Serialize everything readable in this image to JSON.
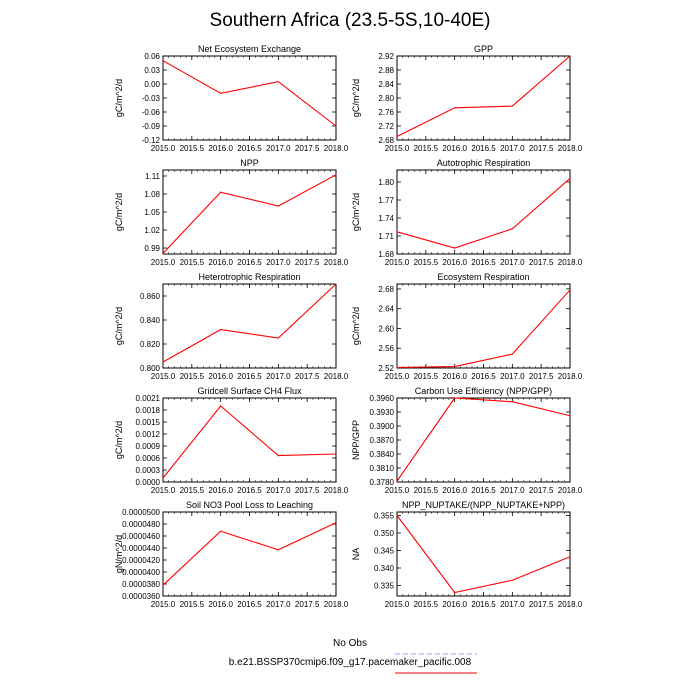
{
  "title": "Southern Africa (23.5-5S,10-40E)",
  "legend": {
    "entries": [
      {
        "label": "No Obs",
        "color": "#9999ff",
        "dash": true
      },
      {
        "label": "b.e21.BSSP370cmip6.f09_g17.pacemaker_pacific.008",
        "color": "#ff0000",
        "dash": false
      }
    ]
  },
  "chart_data": [
    {
      "type": "line",
      "title": "Net Ecosystem Exchange",
      "ylabel": "gC/m^2/d",
      "x": [
        2015.0,
        2016.0,
        2017.0,
        2018.0
      ],
      "xlim": [
        2015.0,
        2018.0
      ],
      "xticks": [
        "2015.0",
        "2015.5",
        "2016.0",
        "2016.5",
        "2017.0",
        "2017.5",
        "2018.0"
      ],
      "ylim": [
        -0.12,
        0.06
      ],
      "yticks": [
        "-0.12",
        "-0.09",
        "-0.06",
        "-0.03",
        "0.00",
        "0.03",
        "0.06"
      ],
      "series": [
        {
          "values": [
            0.05,
            -0.02,
            0.005,
            -0.09
          ],
          "color": "#ff0000"
        }
      ]
    },
    {
      "type": "line",
      "title": "GPP",
      "ylabel": "gC/m^2/d",
      "x": [
        2015.0,
        2016.0,
        2017.0,
        2018.0
      ],
      "xlim": [
        2015.0,
        2018.0
      ],
      "xticks": [
        "2015.0",
        "2015.5",
        "2016.0",
        "2016.5",
        "2017.0",
        "2017.5",
        "2018.0"
      ],
      "ylim": [
        2.68,
        2.92
      ],
      "yticks": [
        "2.68",
        "2.72",
        "2.76",
        "2.80",
        "2.84",
        "2.88",
        "2.92"
      ],
      "series": [
        {
          "values": [
            2.69,
            2.772,
            2.777,
            2.92
          ],
          "color": "#ff0000"
        }
      ]
    },
    {
      "type": "line",
      "title": "NPP",
      "ylabel": "gC/m^2/d",
      "x": [
        2015.0,
        2016.0,
        2017.0,
        2018.0
      ],
      "xlim": [
        2015.0,
        2018.0
      ],
      "xticks": [
        "2015.0",
        "2015.5",
        "2016.0",
        "2016.5",
        "2017.0",
        "2017.5",
        "2018.0"
      ],
      "ylim": [
        0.98,
        1.12
      ],
      "yticks": [
        "0.99",
        "1.02",
        "1.05",
        "1.08",
        "1.11"
      ],
      "series": [
        {
          "values": [
            0.981,
            1.083,
            1.06,
            1.112
          ],
          "color": "#ff0000"
        }
      ]
    },
    {
      "type": "line",
      "title": "Autotrophic Respiration",
      "ylabel": "gC/m^2/d",
      "x": [
        2015.0,
        2016.0,
        2017.0,
        2018.0
      ],
      "xlim": [
        2015.0,
        2018.0
      ],
      "xticks": [
        "2015.0",
        "2015.5",
        "2016.0",
        "2016.5",
        "2017.0",
        "2017.5",
        "2018.0"
      ],
      "ylim": [
        1.68,
        1.82
      ],
      "yticks": [
        "1.68",
        "1.71",
        "1.74",
        "1.77",
        "1.80"
      ],
      "series": [
        {
          "values": [
            1.717,
            1.69,
            1.722,
            1.806
          ],
          "color": "#ff0000"
        }
      ]
    },
    {
      "type": "line",
      "title": "Heterotrophic Respiration",
      "ylabel": "gC/m^2/d",
      "x": [
        2015.0,
        2016.0,
        2017.0,
        2018.0
      ],
      "xlim": [
        2015.0,
        2018.0
      ],
      "xticks": [
        "2015.0",
        "2015.5",
        "2016.0",
        "2016.5",
        "2017.0",
        "2017.5",
        "2018.0"
      ],
      "ylim": [
        0.8,
        0.87
      ],
      "yticks": [
        "0.800",
        "0.820",
        "0.840",
        "0.860"
      ],
      "series": [
        {
          "values": [
            0.805,
            0.832,
            0.825,
            0.87
          ],
          "color": "#ff0000"
        }
      ]
    },
    {
      "type": "line",
      "title": "Ecosystem Respiration",
      "ylabel": "gC/m^2/d",
      "x": [
        2015.0,
        2016.0,
        2017.0,
        2018.0
      ],
      "xlim": [
        2015.0,
        2018.0
      ],
      "xticks": [
        "2015.0",
        "2015.5",
        "2016.0",
        "2016.5",
        "2017.0",
        "2017.5",
        "2018.0"
      ],
      "ylim": [
        2.52,
        2.69
      ],
      "yticks": [
        "2.52",
        "2.56",
        "2.60",
        "2.64",
        "2.68"
      ],
      "series": [
        {
          "values": [
            2.521,
            2.523,
            2.548,
            2.678
          ],
          "color": "#ff0000"
        }
      ]
    },
    {
      "type": "line",
      "title": "Gridcell Surface CH4 Flux",
      "ylabel": "gC/m^2/d",
      "x": [
        2015.0,
        2016.0,
        2017.0,
        2018.0
      ],
      "xlim": [
        2015.0,
        2018.0
      ],
      "xticks": [
        "2015.0",
        "2015.5",
        "2016.0",
        "2016.5",
        "2017.0",
        "2017.5",
        "2018.0"
      ],
      "ylim": [
        0.0,
        0.0021
      ],
      "yticks": [
        "0.0000",
        "0.0003",
        "0.0006",
        "0.0009",
        "0.0012",
        "0.0015",
        "0.0018",
        "0.0021"
      ],
      "series": [
        {
          "values": [
            0.0001,
            0.0019,
            0.00066,
            0.0007
          ],
          "color": "#ff0000"
        }
      ]
    },
    {
      "type": "line",
      "title": "Carbon Use Efficiency (NPP/GPP)",
      "ylabel": "NPP/GPP",
      "x": [
        2015.0,
        2016.0,
        2017.0,
        2018.0
      ],
      "xlim": [
        2015.0,
        2018.0
      ],
      "xticks": [
        "2015.0",
        "2015.5",
        "2016.0",
        "2016.5",
        "2017.0",
        "2017.5",
        "2018.0"
      ],
      "ylim": [
        0.378,
        0.396
      ],
      "yticks": [
        "0.3780",
        "0.3810",
        "0.3840",
        "0.3870",
        "0.3900",
        "0.3930",
        "0.3960"
      ],
      "series": [
        {
          "values": [
            0.3782,
            0.396,
            0.3952,
            0.3922
          ],
          "color": "#ff0000"
        }
      ]
    },
    {
      "type": "line",
      "title": "Soil NO3 Pool Loss to Leaching",
      "ylabel": "gN/m^2/d",
      "x": [
        2015.0,
        2016.0,
        2017.0,
        2018.0
      ],
      "xlim": [
        2015.0,
        2018.0
      ],
      "xticks": [
        "2015.0",
        "2015.5",
        "2016.0",
        "2016.5",
        "2017.0",
        "2017.5",
        "2018.0"
      ],
      "ylim": [
        3.6e-05,
        5e-05
      ],
      "yticks": [
        "0.0000360",
        "0.0000380",
        "0.0000400",
        "0.0000420",
        "0.0000440",
        "0.0000460",
        "0.0000480",
        "0.0000500"
      ],
      "series": [
        {
          "values": [
            3.78e-05,
            4.68e-05,
            4.37e-05,
            4.82e-05
          ],
          "color": "#ff0000"
        }
      ]
    },
    {
      "type": "line",
      "title": "NPP_NUPTAKE/(NPP_NUPTAKE+NPP)",
      "ylabel": "NA",
      "x": [
        2015.0,
        2016.0,
        2017.0,
        2018.0
      ],
      "xlim": [
        2015.0,
        2018.0
      ],
      "xticks": [
        "2015.0",
        "2015.5",
        "2016.0",
        "2016.5",
        "2017.0",
        "2017.5",
        "2018.0"
      ],
      "ylim": [
        0.332,
        0.356
      ],
      "yticks": [
        "0.335",
        "0.340",
        "0.345",
        "0.350",
        "0.355"
      ],
      "series": [
        {
          "values": [
            0.355,
            0.333,
            0.3365,
            0.3432
          ],
          "color": "#ff0000"
        }
      ]
    }
  ]
}
